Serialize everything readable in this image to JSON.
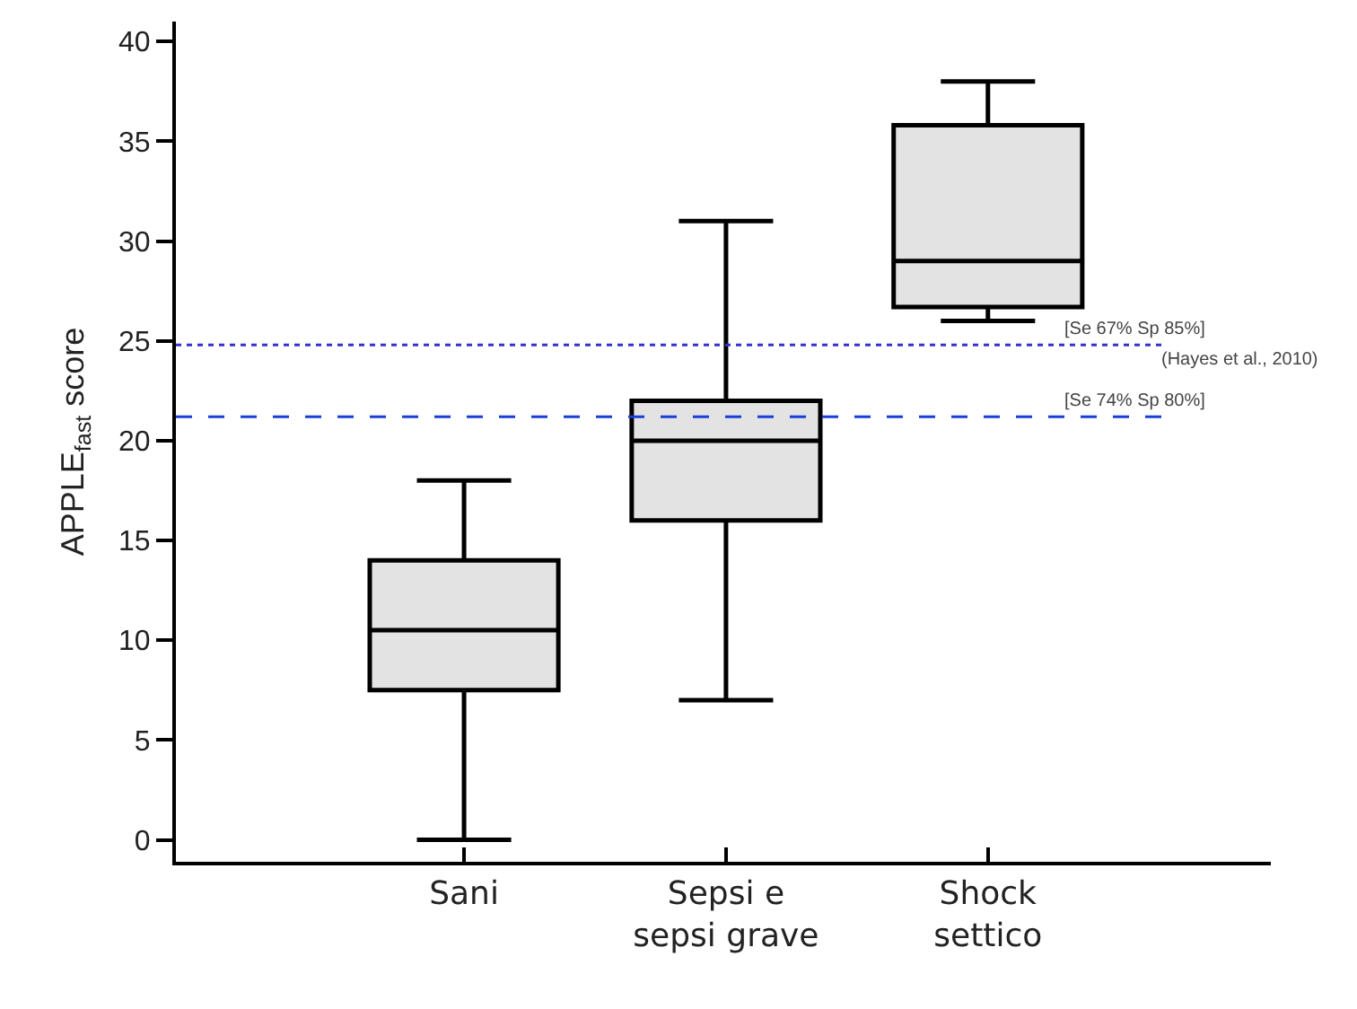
{
  "chart_data": {
    "type": "box",
    "ylabel": "APPLE$_{fast}$ score",
    "categories": [
      "Sani",
      "Sepsi e\nsepsi grave",
      "Shock\nsettico"
    ],
    "boxes": [
      {
        "low": 0,
        "q1": 7.5,
        "median": 10.5,
        "q3": 14,
        "high": 18
      },
      {
        "low": 7,
        "q1": 16,
        "median": 20,
        "q3": 22,
        "high": 31
      },
      {
        "low": 26,
        "q1": 26.7,
        "median": 29,
        "q3": 35.8,
        "high": 38
      }
    ],
    "color": "#e3e3e3",
    "ylim": [
      -1.1,
      41
    ],
    "yticks": [
      0,
      5,
      10,
      15,
      20,
      25,
      30,
      35,
      40
    ],
    "ref_lines": [
      {
        "axis": "y",
        "value": 24.8,
        "label": "[Se 67% Sp 85%]",
        "color": "#3333cc",
        "line_style": "dotted"
      },
      {
        "axis": "y",
        "value": 21.2,
        "label": "[Se 74% Sp 80%]",
        "color": "#1a3fd6",
        "line_style": "dashed"
      }
    ],
    "annotations": [
      "(Hayes et al., 2010)"
    ],
    "grid": false
  }
}
